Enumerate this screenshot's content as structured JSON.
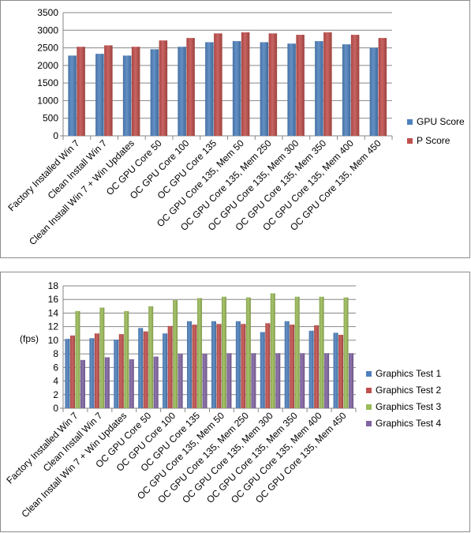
{
  "colors": {
    "gpu": "#4f81bd",
    "p": "#c0504d",
    "gt1": "#4f81bd",
    "gt2": "#c0504d",
    "gt3": "#9bbb59",
    "gt4": "#8064a2",
    "grid": "#868686",
    "axis": "#868686"
  },
  "chart_data": [
    {
      "type": "bar",
      "title": "",
      "xlabel": "",
      "ylabel": "",
      "ylim": [
        0,
        3500
      ],
      "ytick_step": 500,
      "grid": true,
      "legend": "right",
      "categories": [
        "Factory Installed Win 7",
        "Clean Install Win 7",
        "Clean Install Win 7 + Win Updates",
        "OC GPU Core 50",
        "OC GPU Core 100",
        "OC GPU Core 135",
        "OC GPU Core 135, Mem 50",
        "OC GPU Core 135, Mem 250",
        "OC GPU Core 135, Mem 300",
        "OC GPU Core 135, Mem 350",
        "OC GPU Core 135, Mem 400",
        "OC GPU Core 135, Mem 450"
      ],
      "series": [
        {
          "name": "GPU Score",
          "values": [
            2280,
            2330,
            2280,
            2460,
            2530,
            2660,
            2690,
            2660,
            2620,
            2690,
            2600,
            2500
          ]
        },
        {
          "name": "P Score",
          "values": [
            2530,
            2570,
            2530,
            2710,
            2780,
            2910,
            2940,
            2910,
            2870,
            2940,
            2870,
            2780
          ]
        }
      ]
    },
    {
      "type": "bar",
      "title": "",
      "xlabel": "",
      "ylabel": "(fps)",
      "ylim": [
        0,
        18
      ],
      "ytick_step": 2,
      "grid": true,
      "legend": "right",
      "categories": [
        "Factory Installed Win 7",
        "Clean Install Win 7",
        "Clean Install Win 7 + Win Updates",
        "OC GPU Core 50",
        "OC GPU Core 100",
        "OC GPU Core 135",
        "OC GPU Core 135, Mem 50",
        "OC GPU Core 135, Mem 250",
        "OC GPU Core 135, Mem 300",
        "OC GPU Core 135, Mem 350",
        "OC GPU Core 135, Mem 400",
        "OC GPU Core 135, Mem 450"
      ],
      "series": [
        {
          "name": "Graphics Test 1",
          "values": [
            10.2,
            10.3,
            10.1,
            11.8,
            11.0,
            12.8,
            12.8,
            12.8,
            11.2,
            12.8,
            11.4,
            11.1
          ]
        },
        {
          "name": "Graphics Test 2",
          "values": [
            10.7,
            11.0,
            10.9,
            11.3,
            12.1,
            12.3,
            12.4,
            12.4,
            12.5,
            12.3,
            12.2,
            10.8
          ]
        },
        {
          "name": "Graphics Test 3",
          "values": [
            14.3,
            14.8,
            14.3,
            15.0,
            15.9,
            16.2,
            16.4,
            16.3,
            16.9,
            16.4,
            16.4,
            16.3
          ]
        },
        {
          "name": "Graphics Test 4",
          "values": [
            7.1,
            7.5,
            7.2,
            7.6,
            8.0,
            8.0,
            8.1,
            8.1,
            8.1,
            8.1,
            8.1,
            8.1
          ]
        }
      ]
    }
  ]
}
